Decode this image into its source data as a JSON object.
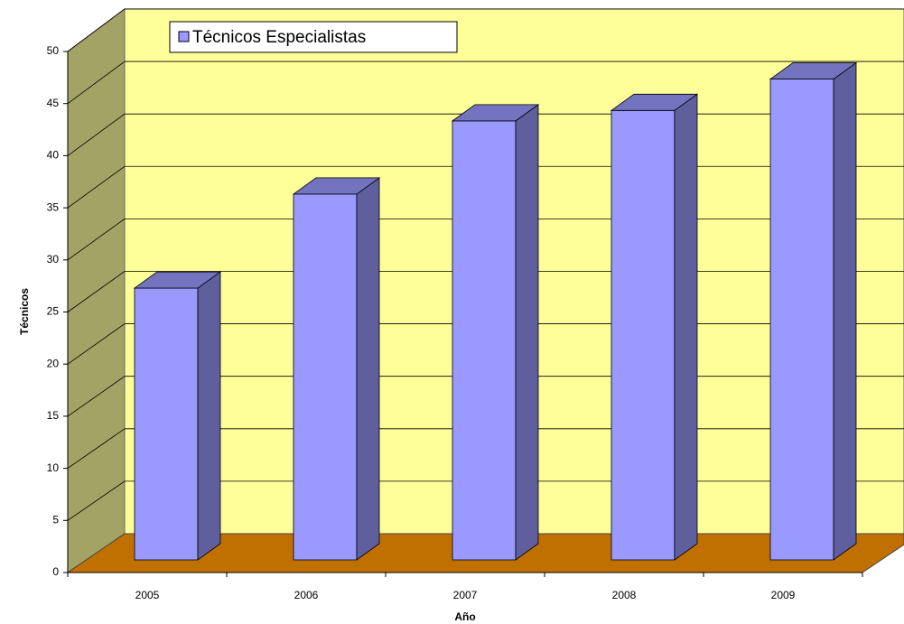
{
  "chart_data": {
    "type": "bar",
    "x_label": "Año",
    "y_label": "Técnicos",
    "categories": [
      "2005",
      "2006",
      "2007",
      "2008",
      "2009"
    ],
    "series": [
      {
        "name": "Técnicos Especialistas",
        "color": "#9999ff",
        "values": [
          26,
          35,
          42,
          43,
          46
        ]
      }
    ],
    "ylim": [
      0,
      50
    ],
    "yticks": [
      0,
      5,
      10,
      15,
      20,
      25,
      30,
      35,
      40,
      45,
      50
    ],
    "grid": true,
    "legend": "top-left",
    "wall_color": "#ffff99",
    "side_wall_color": "#a3a366",
    "floor_color": "#c07000"
  }
}
